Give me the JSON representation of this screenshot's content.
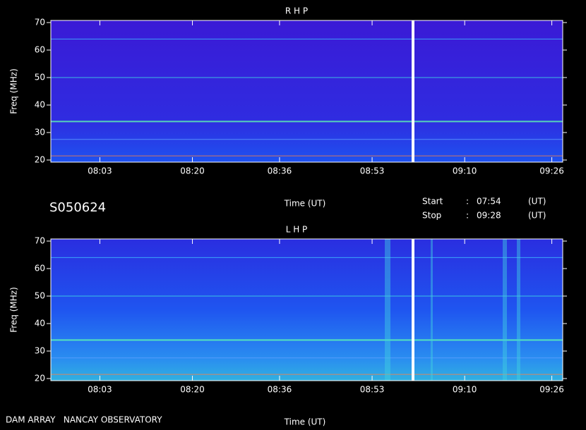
{
  "chart_data": [
    {
      "type": "spectrogram",
      "title": "R H P",
      "xlabel": "Time (UT)",
      "ylabel": "Freq (MHz)",
      "xlim": [
        474,
        568
      ],
      "xticks": [
        {
          "value": 483,
          "label": "08:03"
        },
        {
          "value": 500,
          "label": "08:20"
        },
        {
          "value": 516,
          "label": "08:36"
        },
        {
          "value": 533,
          "label": "08:53"
        },
        {
          "value": 550,
          "label": "09:10"
        },
        {
          "value": 566,
          "label": "09:26"
        }
      ],
      "ylim": [
        20,
        70
      ],
      "yticks": [
        20,
        30,
        40,
        50,
        60,
        70
      ]
    },
    {
      "type": "spectrogram",
      "title": "L H P",
      "xlabel": "Time (UT)",
      "ylabel": "Freq (MHz)",
      "xlim": [
        474,
        568
      ],
      "xticks": [
        {
          "value": 483,
          "label": "08:03"
        },
        {
          "value": 500,
          "label": "08:20"
        },
        {
          "value": 516,
          "label": "08:36"
        },
        {
          "value": 533,
          "label": "08:53"
        },
        {
          "value": 550,
          "label": "09:10"
        },
        {
          "value": 566,
          "label": "09:26"
        }
      ],
      "ylim": [
        20,
        70
      ],
      "yticks": [
        20,
        30,
        40,
        50,
        60,
        70
      ]
    }
  ],
  "info": {
    "id": "S050624",
    "start_label": "Start",
    "start_sep": ":",
    "start": "07:54",
    "start_unit": "(UT)",
    "stop_label": "Stop",
    "stop_sep": ":",
    "stop": "09:28",
    "stop_unit": "(UT)"
  },
  "footer": "DAM ARRAY   NANCAY OBSERVATORY"
}
